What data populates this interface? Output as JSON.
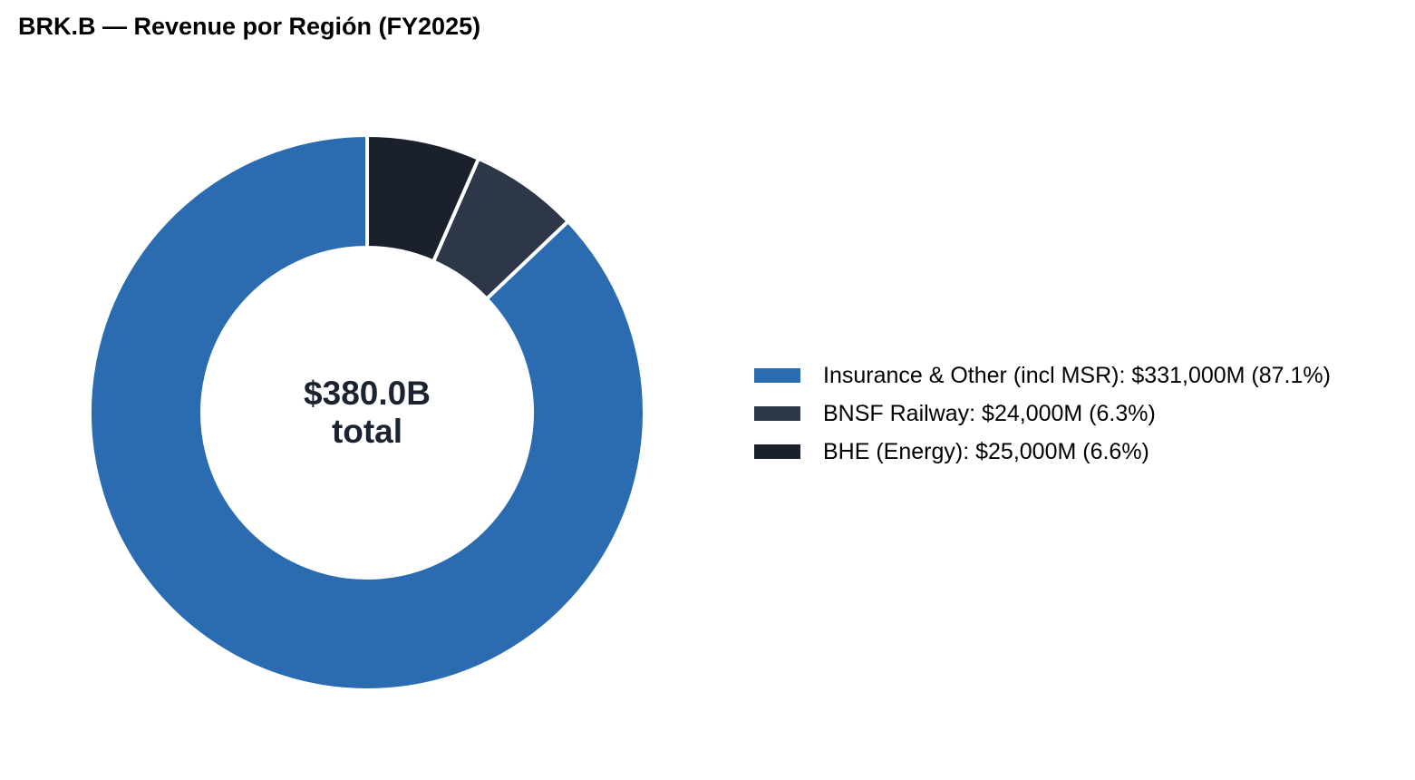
{
  "chart_data": {
    "type": "pie",
    "title": "BRK.B — Revenue por Región (FY2025)",
    "center_label_line1": "$380.0B",
    "center_label_line2": "total",
    "center_label_color": "#1c2330",
    "start_angle_deg": 90,
    "direction": "counterclockwise",
    "slices": [
      {
        "label": "Insurance & Other (incl MSR): $331,000M (87.1%)",
        "value": 331000,
        "color": "#2b6cb0"
      },
      {
        "label": "BNSF Railway: $24,000M (6.3%)",
        "value": 24000,
        "color": "#2d3748"
      },
      {
        "label": "BHE (Energy): $25,000M (6.6%)",
        "value": 25000,
        "color": "#1a202c"
      }
    ],
    "legend_position": "right",
    "separator_color": "#ffffff"
  }
}
